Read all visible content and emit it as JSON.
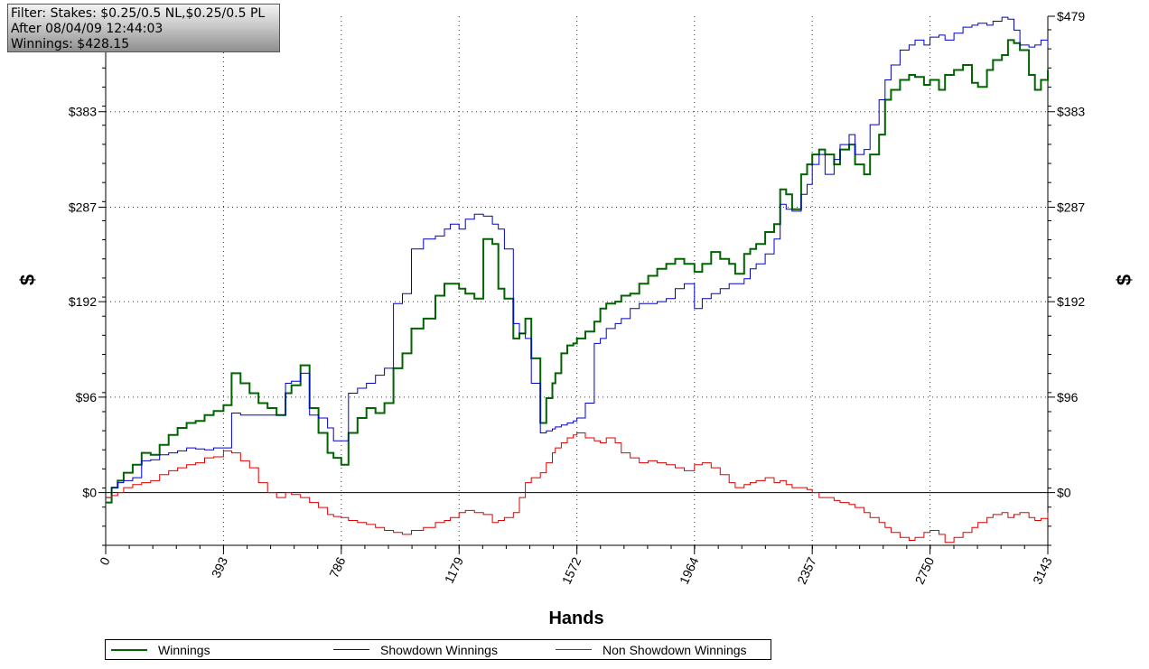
{
  "info": {
    "line1": "Filter: Stakes: $0.25/0.5 NL,$0.25/0.5 PL",
    "line2": "After 08/04/09 12:44:03",
    "line3": "Winnings: $428.15"
  },
  "chart_data": {
    "type": "line",
    "xlabel": "Hands",
    "ylabel_left": "$",
    "ylabel_right": "$",
    "xlim": [
      0,
      3143
    ],
    "ylim": [
      -53,
      479
    ],
    "x_ticks": [
      "0",
      "393",
      "786",
      "1179",
      "1572",
      "1964",
      "2357",
      "2750",
      "3143"
    ],
    "x_tick_values": [
      0,
      393,
      786,
      1179,
      1572,
      1964,
      2357,
      2750,
      3143
    ],
    "y_ticks": [
      "$0",
      "$96",
      "$192",
      "$287",
      "$383",
      "$479"
    ],
    "y_tick_values": [
      0,
      96,
      192,
      287,
      383,
      479
    ],
    "grid": "dotted",
    "legend_position": "bottom",
    "series": [
      {
        "name": "Winnings",
        "color": "#006400",
        "x": [
          0,
          20,
          40,
          60,
          90,
          120,
          150,
          180,
          210,
          240,
          270,
          300,
          330,
          360,
          393,
          420,
          450,
          480,
          510,
          540,
          570,
          600,
          620,
          650,
          680,
          710,
          740,
          760,
          786,
          810,
          840,
          870,
          900,
          930,
          960,
          990,
          1020,
          1060,
          1100,
          1130,
          1150,
          1179,
          1200,
          1230,
          1260,
          1290,
          1310,
          1330,
          1360,
          1380,
          1400,
          1420,
          1450,
          1470,
          1490,
          1500,
          1520,
          1540,
          1560,
          1572,
          1600,
          1630,
          1650,
          1670,
          1700,
          1720,
          1750,
          1780,
          1810,
          1840,
          1870,
          1900,
          1930,
          1964,
          1990,
          2020,
          2050,
          2080,
          2100,
          2130,
          2150,
          2170,
          2200,
          2230,
          2250,
          2270,
          2290,
          2320,
          2340,
          2357,
          2380,
          2400,
          2430,
          2450,
          2480,
          2500,
          2530,
          2550,
          2580,
          2600,
          2620,
          2650,
          2680,
          2700,
          2730,
          2750,
          2780,
          2800,
          2830,
          2860,
          2890,
          2910,
          2940,
          2960,
          2990,
          3010,
          3030,
          3050,
          3080,
          3100,
          3120,
          3143
        ],
        "values": [
          -10,
          5,
          12,
          20,
          28,
          40,
          38,
          48,
          58,
          65,
          70,
          72,
          78,
          82,
          88,
          120,
          110,
          100,
          90,
          85,
          78,
          100,
          108,
          128,
          85,
          60,
          40,
          35,
          28,
          60,
          75,
          85,
          80,
          90,
          125,
          140,
          165,
          175,
          198,
          210,
          210,
          205,
          200,
          195,
          255,
          250,
          205,
          195,
          155,
          160,
          175,
          135,
          70,
          95,
          110,
          120,
          140,
          148,
          150,
          155,
          162,
          172,
          185,
          190,
          192,
          198,
          200,
          210,
          218,
          225,
          230,
          235,
          230,
          222,
          230,
          242,
          235,
          230,
          220,
          240,
          245,
          250,
          262,
          270,
          305,
          300,
          285,
          320,
          330,
          340,
          345,
          340,
          330,
          345,
          350,
          330,
          320,
          340,
          360,
          395,
          405,
          415,
          420,
          418,
          410,
          415,
          405,
          420,
          425,
          430,
          412,
          408,
          425,
          435,
          440,
          455,
          452,
          445,
          420,
          405,
          415,
          425
        ]
      },
      {
        "name": "Showdown Winnings",
        "color": "#0000cc",
        "x": [
          0,
          20,
          40,
          60,
          90,
          120,
          150,
          180,
          210,
          240,
          270,
          300,
          330,
          360,
          393,
          420,
          450,
          480,
          510,
          540,
          570,
          600,
          620,
          650,
          680,
          710,
          740,
          760,
          786,
          810,
          840,
          870,
          900,
          930,
          960,
          990,
          1020,
          1060,
          1100,
          1130,
          1150,
          1179,
          1200,
          1230,
          1260,
          1290,
          1310,
          1330,
          1360,
          1380,
          1400,
          1420,
          1450,
          1470,
          1490,
          1500,
          1520,
          1540,
          1560,
          1572,
          1600,
          1630,
          1650,
          1670,
          1700,
          1720,
          1750,
          1780,
          1810,
          1840,
          1870,
          1900,
          1930,
          1964,
          1990,
          2020,
          2050,
          2080,
          2100,
          2130,
          2150,
          2170,
          2200,
          2230,
          2250,
          2270,
          2290,
          2320,
          2340,
          2357,
          2380,
          2400,
          2430,
          2450,
          2480,
          2500,
          2530,
          2550,
          2580,
          2600,
          2620,
          2650,
          2680,
          2700,
          2730,
          2750,
          2780,
          2800,
          2830,
          2860,
          2890,
          2910,
          2940,
          2960,
          2990,
          3010,
          3030,
          3050,
          3080,
          3100,
          3120,
          3143
        ],
        "values": [
          -5,
          5,
          10,
          12,
          15,
          32,
          33,
          38,
          40,
          42,
          45,
          44,
          43,
          45,
          45,
          80,
          78,
          78,
          78,
          78,
          78,
          110,
          112,
          120,
          78,
          75,
          65,
          52,
          52,
          100,
          105,
          110,
          118,
          125,
          190,
          200,
          245,
          255,
          258,
          265,
          270,
          265,
          275,
          280,
          278,
          270,
          265,
          245,
          170,
          160,
          155,
          110,
          60,
          62,
          64,
          66,
          68,
          70,
          72,
          75,
          90,
          150,
          155,
          165,
          170,
          175,
          185,
          190,
          190,
          192,
          195,
          205,
          210,
          185,
          195,
          200,
          205,
          210,
          210,
          215,
          225,
          230,
          240,
          255,
          290,
          285,
          283,
          300,
          310,
          330,
          340,
          320,
          335,
          350,
          360,
          340,
          345,
          370,
          395,
          415,
          430,
          445,
          450,
          455,
          450,
          458,
          460,
          455,
          462,
          468,
          470,
          472,
          470,
          474,
          478,
          476,
          465,
          450,
          448,
          450,
          455,
          448
        ]
      },
      {
        "name": "Non Showdown Winnings",
        "color": "#dd0000",
        "x": [
          0,
          20,
          40,
          60,
          90,
          120,
          150,
          180,
          210,
          240,
          270,
          300,
          330,
          360,
          393,
          420,
          450,
          480,
          510,
          540,
          570,
          600,
          620,
          650,
          680,
          710,
          740,
          760,
          786,
          810,
          840,
          870,
          900,
          930,
          960,
          990,
          1020,
          1060,
          1100,
          1130,
          1150,
          1179,
          1200,
          1230,
          1260,
          1290,
          1310,
          1330,
          1360,
          1380,
          1400,
          1420,
          1450,
          1470,
          1490,
          1500,
          1520,
          1540,
          1560,
          1572,
          1600,
          1630,
          1650,
          1670,
          1700,
          1720,
          1750,
          1780,
          1810,
          1840,
          1870,
          1900,
          1930,
          1964,
          1990,
          2020,
          2050,
          2080,
          2100,
          2130,
          2150,
          2170,
          2200,
          2230,
          2250,
          2270,
          2290,
          2320,
          2340,
          2357,
          2380,
          2400,
          2430,
          2450,
          2480,
          2500,
          2530,
          2550,
          2580,
          2600,
          2620,
          2650,
          2680,
          2700,
          2730,
          2750,
          2780,
          2800,
          2830,
          2860,
          2890,
          2910,
          2940,
          2960,
          2990,
          3010,
          3030,
          3050,
          3080,
          3100,
          3120,
          3143
        ],
        "values": [
          -5,
          -3,
          0,
          5,
          8,
          10,
          12,
          18,
          22,
          25,
          28,
          30,
          35,
          36,
          42,
          40,
          32,
          25,
          10,
          0,
          -5,
          0,
          -2,
          -5,
          -10,
          -15,
          -22,
          -24,
          -25,
          -28,
          -30,
          -32,
          -35,
          -38,
          -40,
          -42,
          -38,
          -35,
          -30,
          -28,
          -25,
          -20,
          -18,
          -20,
          -22,
          -30,
          -28,
          -25,
          -20,
          -5,
          10,
          15,
          20,
          30,
          40,
          45,
          50,
          55,
          58,
          60,
          55,
          52,
          50,
          55,
          50,
          40,
          35,
          30,
          32,
          30,
          28,
          25,
          22,
          28,
          30,
          25,
          18,
          10,
          5,
          8,
          10,
          12,
          15,
          10,
          12,
          8,
          5,
          5,
          3,
          0,
          -5,
          -5,
          -8,
          -10,
          -12,
          -15,
          -20,
          -25,
          -30,
          -35,
          -40,
          -45,
          -48,
          -45,
          -40,
          -38,
          -42,
          -50,
          -45,
          -40,
          -35,
          -30,
          -25,
          -22,
          -20,
          -25,
          -22,
          -20,
          -25,
          -28,
          -26,
          -20
        ]
      }
    ]
  }
}
